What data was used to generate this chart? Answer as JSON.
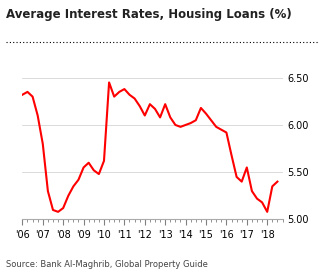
{
  "title": "Average Interest Rates, Housing Loans (%)",
  "source": "Source: Bank Al-Maghrib, Global Property Guide",
  "line_color": "#ff0000",
  "background_color": "#ffffff",
  "grid_color": "#cccccc",
  "ylim": [
    5.0,
    6.7
  ],
  "yticks": [
    5.0,
    5.5,
    6.0,
    6.5
  ],
  "xlim": [
    2006,
    2018.75
  ],
  "xtick_labels": [
    "'06",
    "'07",
    "'08",
    "'09",
    "'10",
    "'11",
    "'12",
    "'13",
    "'14",
    "'15",
    "'16",
    "'17",
    "'18"
  ],
  "xtick_positions": [
    2006,
    2007,
    2008,
    2009,
    2010,
    2011,
    2012,
    2013,
    2014,
    2015,
    2016,
    2017,
    2018
  ],
  "data_x": [
    2006.0,
    2006.25,
    2006.5,
    2006.75,
    2007.0,
    2007.25,
    2007.5,
    2007.75,
    2008.0,
    2008.25,
    2008.5,
    2008.75,
    2009.0,
    2009.25,
    2009.5,
    2009.75,
    2010.0,
    2010.25,
    2010.5,
    2010.75,
    2011.0,
    2011.25,
    2011.5,
    2011.75,
    2012.0,
    2012.25,
    2012.5,
    2012.75,
    2013.0,
    2013.25,
    2013.5,
    2013.75,
    2014.0,
    2014.25,
    2014.5,
    2014.75,
    2015.0,
    2015.25,
    2015.5,
    2015.75,
    2016.0,
    2016.25,
    2016.5,
    2016.75,
    2017.0,
    2017.25,
    2017.5,
    2017.75,
    2018.0,
    2018.25,
    2018.5
  ],
  "data_y": [
    6.32,
    6.35,
    6.3,
    6.1,
    5.8,
    5.3,
    5.1,
    5.08,
    5.12,
    5.25,
    5.35,
    5.42,
    5.55,
    5.6,
    5.52,
    5.48,
    5.62,
    6.45,
    6.3,
    6.35,
    6.38,
    6.32,
    6.28,
    6.2,
    6.1,
    6.22,
    6.17,
    6.08,
    6.22,
    6.08,
    6.0,
    5.98,
    6.0,
    6.02,
    6.05,
    6.18,
    6.12,
    6.05,
    5.98,
    5.95,
    5.92,
    5.68,
    5.45,
    5.4,
    5.55,
    5.3,
    5.22,
    5.18,
    5.08,
    5.35,
    5.4
  ]
}
